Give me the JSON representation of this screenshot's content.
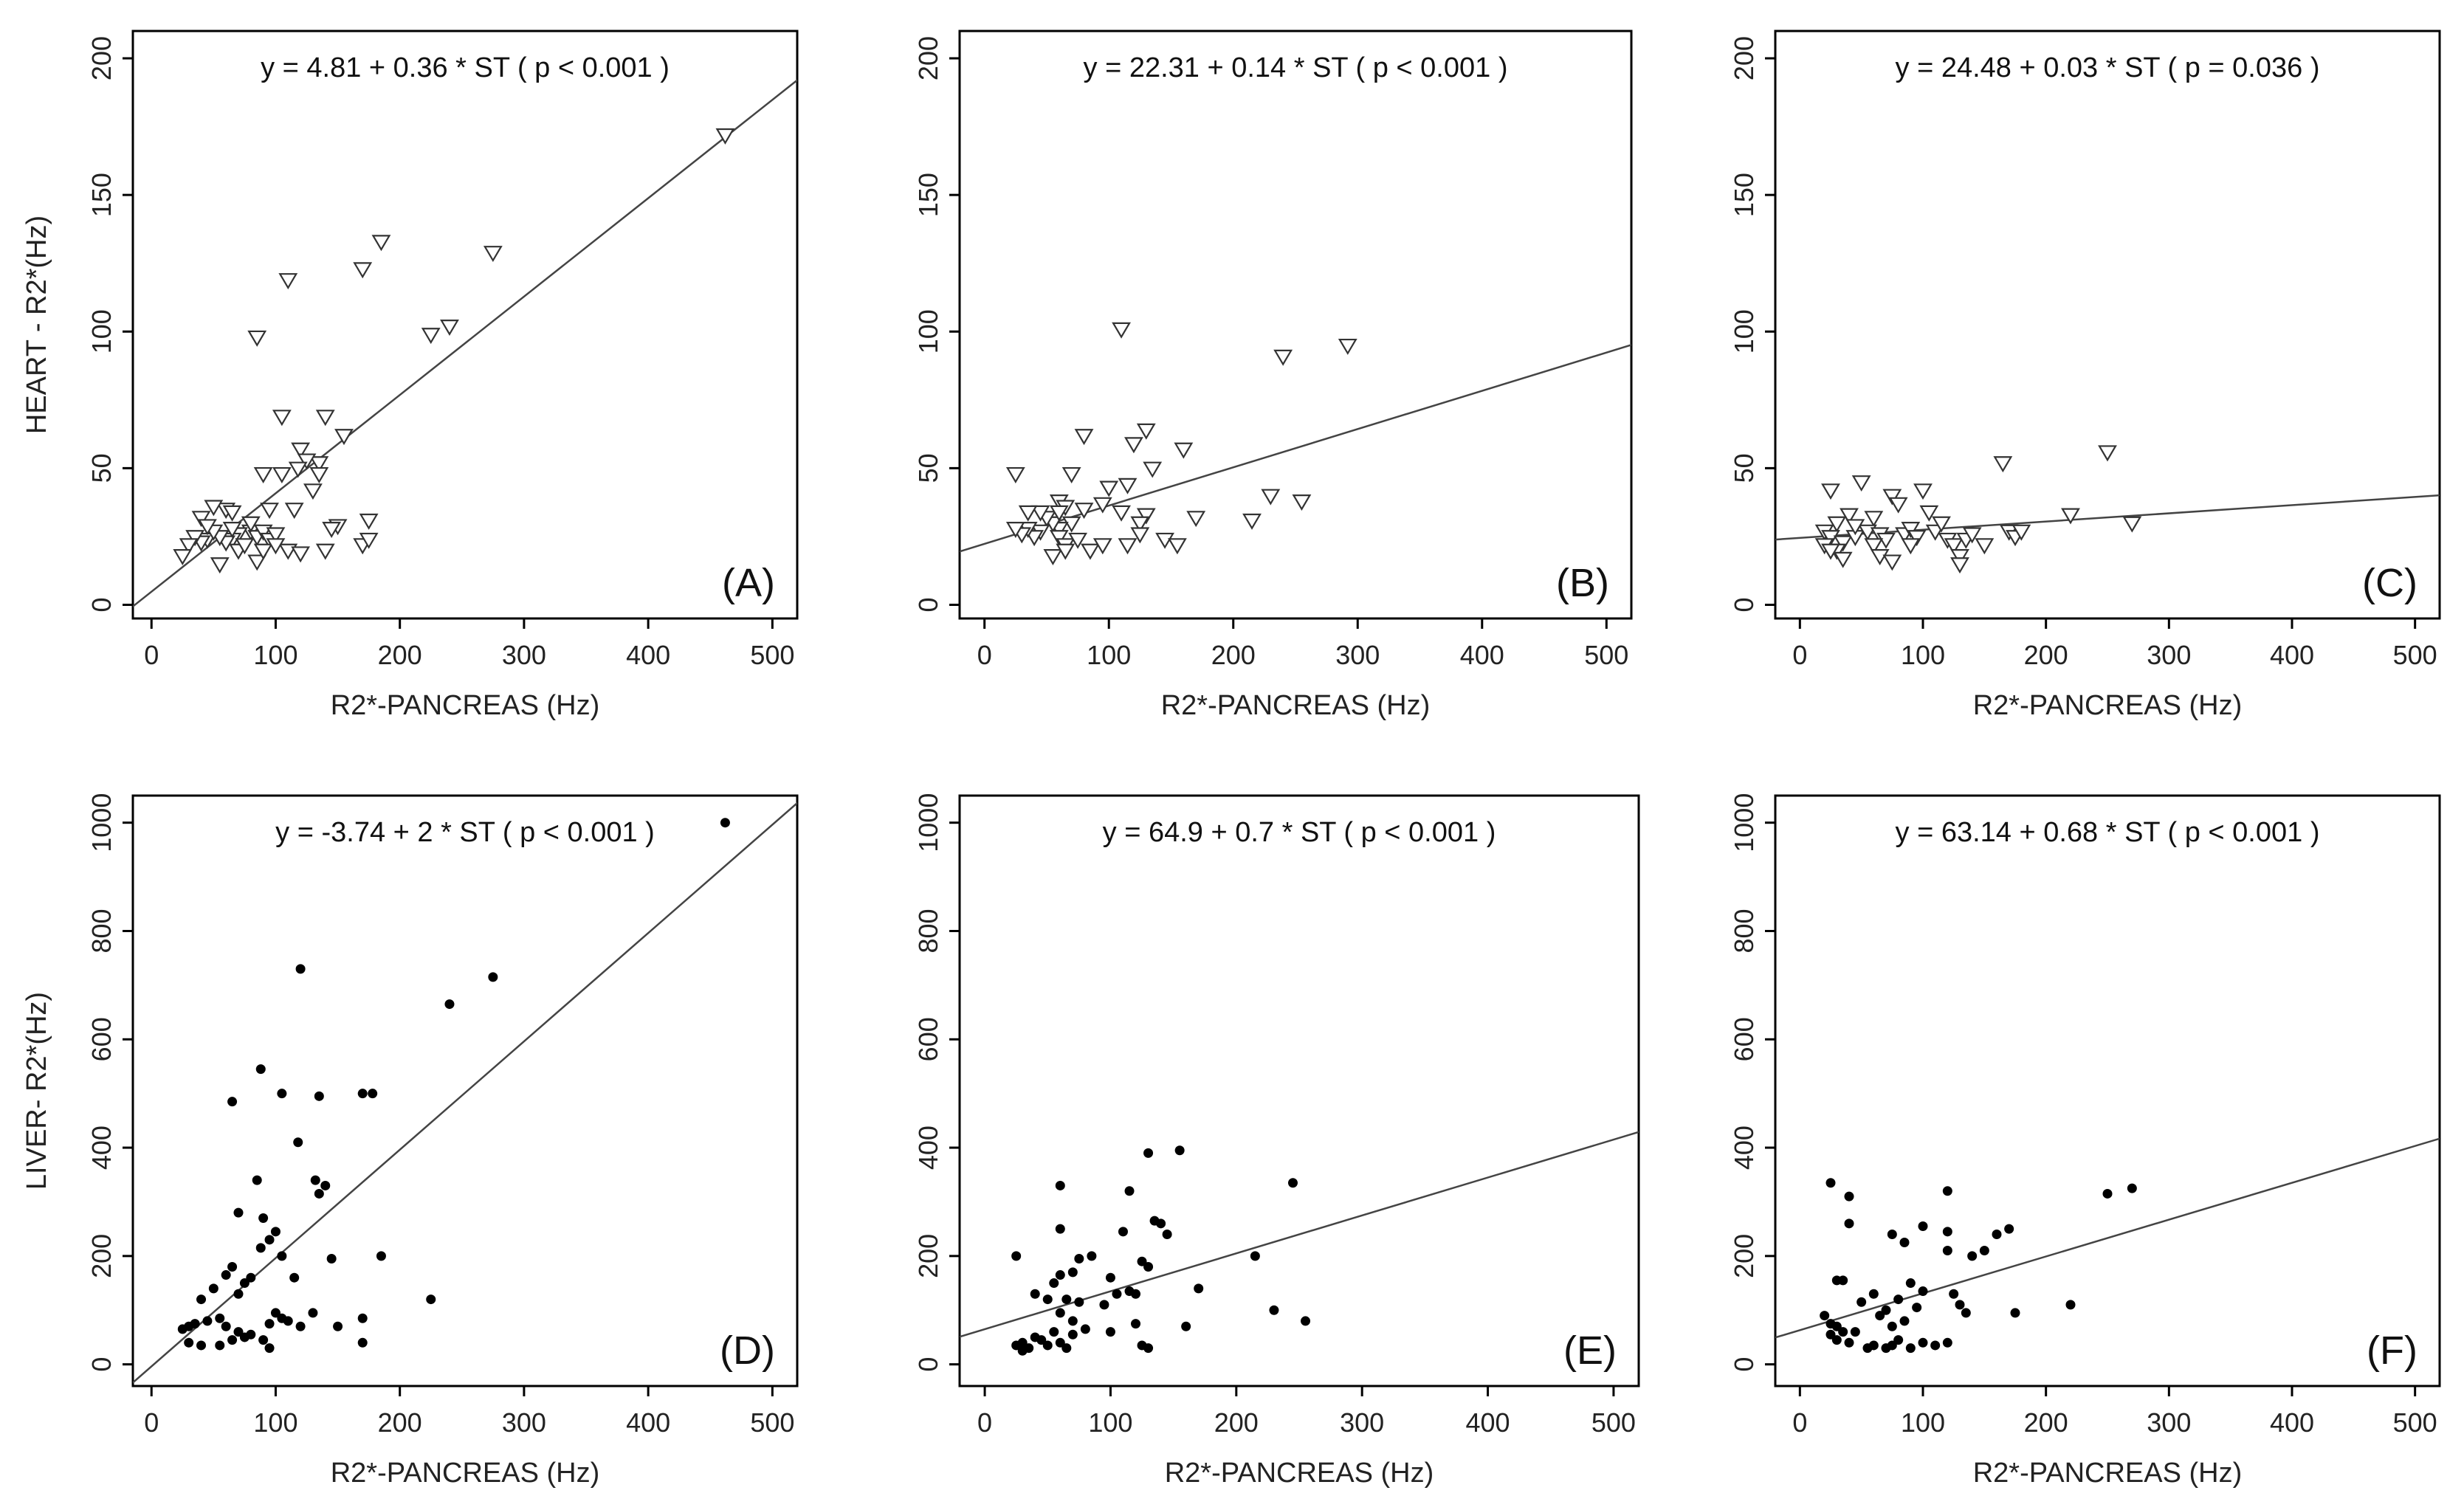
{
  "panels": [
    {
      "id": "A",
      "label": "(A)",
      "equation": "y = 4.81 + 0.36 * ST ( p < 0.001 )",
      "ylabel": "HEART - R2*(Hz)",
      "xlabel": "R2*-PANCREAS (Hz)",
      "marker": "triangle",
      "xlim": [
        -15,
        520
      ],
      "ylim": [
        -5,
        210
      ],
      "xticks": [
        0,
        100,
        200,
        300,
        400,
        500
      ],
      "yticks": [
        0,
        50,
        100,
        150,
        200
      ],
      "fit": {
        "intercept": 4.81,
        "slope": 0.36
      },
      "points": [
        [
          462,
          172
        ],
        [
          185,
          133
        ],
        [
          275,
          129
        ],
        [
          170,
          123
        ],
        [
          110,
          119
        ],
        [
          240,
          102
        ],
        [
          225,
          99
        ],
        [
          85,
          98
        ],
        [
          105,
          69
        ],
        [
          140,
          69
        ],
        [
          155,
          62
        ],
        [
          120,
          57
        ],
        [
          135,
          52
        ],
        [
          125,
          53
        ],
        [
          118,
          50
        ],
        [
          90,
          48
        ],
        [
          105,
          48
        ],
        [
          135,
          48
        ],
        [
          130,
          42
        ],
        [
          115,
          35
        ],
        [
          95,
          35
        ],
        [
          150,
          29
        ],
        [
          145,
          28
        ],
        [
          175,
          31
        ],
        [
          80,
          27
        ],
        [
          85,
          25
        ],
        [
          70,
          26
        ],
        [
          65,
          24
        ],
        [
          60,
          23
        ],
        [
          55,
          25
        ],
        [
          45,
          24
        ],
        [
          40,
          23
        ],
        [
          35,
          25
        ],
        [
          50,
          27
        ],
        [
          40,
          32
        ],
        [
          45,
          29
        ],
        [
          60,
          35
        ],
        [
          65,
          34
        ],
        [
          50,
          36
        ],
        [
          90,
          27
        ],
        [
          95,
          24
        ],
        [
          100,
          26
        ],
        [
          110,
          20
        ],
        [
          120,
          19
        ],
        [
          140,
          20
        ],
        [
          170,
          22
        ],
        [
          175,
          24
        ],
        [
          30,
          22
        ],
        [
          25,
          18
        ],
        [
          55,
          15
        ],
        [
          70,
          20
        ],
        [
          75,
          22
        ],
        [
          85,
          16
        ],
        [
          90,
          20
        ],
        [
          100,
          22
        ],
        [
          80,
          30
        ],
        [
          65,
          28
        ]
      ]
    },
    {
      "id": "B",
      "label": "(B)",
      "equation": "y = 22.31 + 0.14 * ST ( p < 0.001 )",
      "ylabel": "",
      "xlabel": "R2*-PANCREAS (Hz)",
      "marker": "triangle",
      "xlim": [
        -20,
        520
      ],
      "ylim": [
        -5,
        210
      ],
      "xticks": [
        0,
        100,
        200,
        300,
        400,
        500
      ],
      "yticks": [
        0,
        50,
        100,
        150,
        200
      ],
      "fit": {
        "intercept": 22.31,
        "slope": 0.14
      },
      "points": [
        [
          110,
          101
        ],
        [
          292,
          95
        ],
        [
          240,
          91
        ],
        [
          80,
          62
        ],
        [
          130,
          64
        ],
        [
          120,
          59
        ],
        [
          160,
          57
        ],
        [
          135,
          50
        ],
        [
          70,
          48
        ],
        [
          25,
          48
        ],
        [
          115,
          44
        ],
        [
          100,
          43
        ],
        [
          230,
          40
        ],
        [
          255,
          38
        ],
        [
          60,
          38
        ],
        [
          65,
          36
        ],
        [
          95,
          37
        ],
        [
          110,
          34
        ],
        [
          170,
          32
        ],
        [
          215,
          31
        ],
        [
          130,
          33
        ],
        [
          125,
          30
        ],
        [
          80,
          35
        ],
        [
          70,
          30
        ],
        [
          60,
          28
        ],
        [
          55,
          30
        ],
        [
          50,
          32
        ],
        [
          45,
          27
        ],
        [
          40,
          25
        ],
        [
          35,
          28
        ],
        [
          30,
          26
        ],
        [
          25,
          28
        ],
        [
          60,
          25
        ],
        [
          65,
          22
        ],
        [
          75,
          24
        ],
        [
          85,
          20
        ],
        [
          95,
          22
        ],
        [
          115,
          22
        ],
        [
          125,
          26
        ],
        [
          145,
          24
        ],
        [
          155,
          22
        ],
        [
          55,
          18
        ],
        [
          65,
          20
        ],
        [
          45,
          34
        ],
        [
          35,
          34
        ],
        [
          60,
          34
        ]
      ]
    },
    {
      "id": "C",
      "label": "(C)",
      "equation": "y = 24.48 + 0.03 * ST ( p = 0.036 )",
      "ylabel": "",
      "xlabel": "R2*-PANCREAS (Hz)",
      "marker": "triangle",
      "xlim": [
        -20,
        520
      ],
      "ylim": [
        -5,
        210
      ],
      "xticks": [
        0,
        100,
        200,
        300,
        400,
        500
      ],
      "yticks": [
        0,
        50,
        100,
        150,
        200
      ],
      "fit": {
        "intercept": 24.48,
        "slope": 0.03
      },
      "points": [
        [
          250,
          56
        ],
        [
          165,
          52
        ],
        [
          50,
          45
        ],
        [
          25,
          42
        ],
        [
          100,
          42
        ],
        [
          75,
          40
        ],
        [
          80,
          37
        ],
        [
          270,
          30
        ],
        [
          220,
          33
        ],
        [
          105,
          34
        ],
        [
          60,
          32
        ],
        [
          40,
          33
        ],
        [
          30,
          30
        ],
        [
          20,
          27
        ],
        [
          25,
          25
        ],
        [
          35,
          23
        ],
        [
          45,
          25
        ],
        [
          55,
          27
        ],
        [
          65,
          26
        ],
        [
          70,
          24
        ],
        [
          85,
          26
        ],
        [
          90,
          28
        ],
        [
          95,
          25
        ],
        [
          110,
          27
        ],
        [
          120,
          24
        ],
        [
          125,
          22
        ],
        [
          130,
          18
        ],
        [
          135,
          24
        ],
        [
          140,
          26
        ],
        [
          150,
          22
        ],
        [
          170,
          27
        ],
        [
          175,
          25
        ],
        [
          180,
          27
        ],
        [
          30,
          20
        ],
        [
          35,
          17
        ],
        [
          60,
          22
        ],
        [
          65,
          18
        ],
        [
          75,
          16
        ],
        [
          90,
          22
        ],
        [
          115,
          30
        ],
        [
          130,
          15
        ],
        [
          20,
          22
        ],
        [
          25,
          20
        ],
        [
          45,
          29
        ]
      ]
    },
    {
      "id": "D",
      "label": "(D)",
      "equation": "y = -3.74 + 2 * ST ( p < 0.001 )",
      "ylabel": "LIVER- R2*(Hz)",
      "xlabel": "R2*-PANCREAS (Hz)",
      "marker": "dot",
      "xlim": [
        -15,
        520
      ],
      "ylim": [
        -40,
        1050
      ],
      "xticks": [
        0,
        100,
        200,
        300,
        400,
        500
      ],
      "yticks": [
        0,
        200,
        400,
        600,
        800,
        1000
      ],
      "fit": {
        "intercept": -3.74,
        "slope": 2
      },
      "points": [
        [
          462,
          1000
        ],
        [
          120,
          730
        ],
        [
          275,
          715
        ],
        [
          240,
          665
        ],
        [
          88,
          545
        ],
        [
          170,
          500
        ],
        [
          178,
          500
        ],
        [
          65,
          485
        ],
        [
          105,
          500
        ],
        [
          135,
          495
        ],
        [
          118,
          410
        ],
        [
          85,
          340
        ],
        [
          132,
          340
        ],
        [
          140,
          330
        ],
        [
          135,
          315
        ],
        [
          90,
          270
        ],
        [
          70,
          280
        ],
        [
          100,
          245
        ],
        [
          95,
          230
        ],
        [
          88,
          215
        ],
        [
          105,
          200
        ],
        [
          145,
          195
        ],
        [
          185,
          200
        ],
        [
          65,
          180
        ],
        [
          60,
          165
        ],
        [
          80,
          160
        ],
        [
          115,
          160
        ],
        [
          75,
          150
        ],
        [
          70,
          130
        ],
        [
          50,
          140
        ],
        [
          40,
          120
        ],
        [
          225,
          120
        ],
        [
          35,
          75
        ],
        [
          30,
          70
        ],
        [
          25,
          65
        ],
        [
          45,
          80
        ],
        [
          55,
          85
        ],
        [
          60,
          70
        ],
        [
          70,
          60
        ],
        [
          80,
          55
        ],
        [
          90,
          45
        ],
        [
          95,
          30
        ],
        [
          110,
          80
        ],
        [
          120,
          70
        ],
        [
          130,
          95
        ],
        [
          150,
          70
        ],
        [
          170,
          85
        ],
        [
          170,
          40
        ],
        [
          30,
          40
        ],
        [
          40,
          35
        ],
        [
          55,
          35
        ],
        [
          65,
          45
        ],
        [
          75,
          50
        ],
        [
          95,
          75
        ],
        [
          100,
          95
        ],
        [
          105,
          85
        ]
      ]
    },
    {
      "id": "E",
      "label": "(E)",
      "equation": "y = 64.9 + 0.7 * ST ( p < 0.001 )",
      "ylabel": "",
      "xlabel": "R2*-PANCREAS (Hz)",
      "marker": "dot",
      "xlim": [
        -20,
        520
      ],
      "ylim": [
        -40,
        1050
      ],
      "xticks": [
        0,
        100,
        200,
        300,
        400,
        500
      ],
      "yticks": [
        0,
        200,
        400,
        600,
        800,
        1000
      ],
      "fit": {
        "intercept": 64.9,
        "slope": 0.7
      },
      "points": [
        [
          155,
          395
        ],
        [
          130,
          390
        ],
        [
          245,
          335
        ],
        [
          60,
          330
        ],
        [
          115,
          320
        ],
        [
          135,
          265
        ],
        [
          140,
          260
        ],
        [
          145,
          240
        ],
        [
          60,
          250
        ],
        [
          110,
          245
        ],
        [
          215,
          200
        ],
        [
          25,
          200
        ],
        [
          75,
          195
        ],
        [
          85,
          200
        ],
        [
          125,
          190
        ],
        [
          130,
          180
        ],
        [
          100,
          160
        ],
        [
          60,
          165
        ],
        [
          70,
          170
        ],
        [
          55,
          150
        ],
        [
          40,
          130
        ],
        [
          50,
          120
        ],
        [
          65,
          120
        ],
        [
          75,
          115
        ],
        [
          95,
          110
        ],
        [
          105,
          130
        ],
        [
          115,
          135
        ],
        [
          120,
          130
        ],
        [
          170,
          140
        ],
        [
          230,
          100
        ],
        [
          255,
          80
        ],
        [
          160,
          70
        ],
        [
          120,
          75
        ],
        [
          100,
          60
        ],
        [
          80,
          65
        ],
        [
          70,
          55
        ],
        [
          60,
          40
        ],
        [
          50,
          35
        ],
        [
          45,
          45
        ],
        [
          40,
          50
        ],
        [
          30,
          40
        ],
        [
          25,
          35
        ],
        [
          30,
          25
        ],
        [
          35,
          30
        ],
        [
          125,
          35
        ],
        [
          130,
          30
        ],
        [
          65,
          30
        ],
        [
          60,
          95
        ],
        [
          70,
          80
        ],
        [
          55,
          60
        ]
      ]
    },
    {
      "id": "F",
      "label": "(F)",
      "equation": "y = 63.14 + 0.68 * ST ( p < 0.001 )",
      "ylabel": "",
      "xlabel": "R2*-PANCREAS (Hz)",
      "marker": "dot",
      "xlim": [
        -20,
        520
      ],
      "ylim": [
        -40,
        1050
      ],
      "xticks": [
        0,
        100,
        200,
        300,
        400,
        500
      ],
      "yticks": [
        0,
        200,
        400,
        600,
        800,
        1000
      ],
      "fit": {
        "intercept": 63.14,
        "slope": 0.68
      },
      "points": [
        [
          25,
          335
        ],
        [
          120,
          320
        ],
        [
          270,
          325
        ],
        [
          250,
          315
        ],
        [
          40,
          310
        ],
        [
          40,
          260
        ],
        [
          100,
          255
        ],
        [
          120,
          245
        ],
        [
          170,
          250
        ],
        [
          160,
          240
        ],
        [
          75,
          240
        ],
        [
          85,
          225
        ],
        [
          120,
          210
        ],
        [
          150,
          210
        ],
        [
          140,
          200
        ],
        [
          30,
          155
        ],
        [
          35,
          155
        ],
        [
          90,
          150
        ],
        [
          100,
          135
        ],
        [
          60,
          130
        ],
        [
          80,
          120
        ],
        [
          50,
          115
        ],
        [
          70,
          100
        ],
        [
          95,
          105
        ],
        [
          125,
          130
        ],
        [
          130,
          110
        ],
        [
          135,
          95
        ],
        [
          175,
          95
        ],
        [
          220,
          110
        ],
        [
          20,
          90
        ],
        [
          25,
          75
        ],
        [
          30,
          70
        ],
        [
          35,
          60
        ],
        [
          25,
          55
        ],
        [
          30,
          45
        ],
        [
          40,
          40
        ],
        [
          55,
          30
        ],
        [
          60,
          35
        ],
        [
          70,
          30
        ],
        [
          75,
          35
        ],
        [
          80,
          45
        ],
        [
          90,
          30
        ],
        [
          100,
          40
        ],
        [
          110,
          35
        ],
        [
          120,
          40
        ],
        [
          75,
          70
        ],
        [
          85,
          80
        ],
        [
          65,
          90
        ],
        [
          45,
          60
        ]
      ]
    }
  ]
}
